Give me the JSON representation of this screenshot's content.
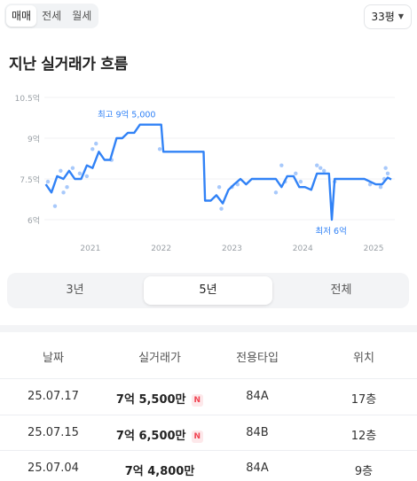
{
  "deal_tabs": [
    {
      "label": "매매",
      "active": true
    },
    {
      "label": "전세",
      "active": false
    },
    {
      "label": "월세",
      "active": false
    }
  ],
  "size_select": {
    "value": "33평",
    "icon": "caret-down-icon"
  },
  "title": "지난 실거래가 흐름",
  "chart_data": {
    "type": "line",
    "title": "",
    "ylabel": "",
    "xlabel": "",
    "y_ticks": [
      "10.5억",
      "9억",
      "7.5억",
      "6억"
    ],
    "x_ticks": [
      "2021",
      "2022",
      "2023",
      "2024",
      "2025"
    ],
    "ylim": [
      6,
      10.5
    ],
    "y_unit": "억",
    "annotations": [
      {
        "label": "최고 9억 5,000",
        "x": 2022.0,
        "y": 9.5
      },
      {
        "label": "최저 6억",
        "x": 2024.7,
        "y": 6.0
      }
    ],
    "series": [
      {
        "style": "line",
        "color": "#3182f6",
        "points": [
          [
            2020.67,
            7.3
          ],
          [
            2020.75,
            7.0
          ],
          [
            2020.83,
            7.6
          ],
          [
            2020.92,
            7.5
          ],
          [
            2021.0,
            7.8
          ],
          [
            2021.08,
            7.5
          ],
          [
            2021.17,
            7.5
          ],
          [
            2021.25,
            8.0
          ],
          [
            2021.33,
            7.9
          ],
          [
            2021.42,
            8.5
          ],
          [
            2021.5,
            8.2
          ],
          [
            2021.58,
            8.2
          ],
          [
            2021.67,
            9.0
          ],
          [
            2021.75,
            9.0
          ],
          [
            2021.83,
            9.2
          ],
          [
            2021.92,
            9.2
          ],
          [
            2022.0,
            9.5
          ],
          [
            2022.1,
            9.5
          ],
          [
            2022.2,
            9.5
          ],
          [
            2022.3,
            9.5
          ],
          [
            2022.33,
            8.5
          ],
          [
            2022.5,
            8.5
          ],
          [
            2022.67,
            8.5
          ],
          [
            2022.9,
            8.5
          ],
          [
            2022.92,
            6.7
          ],
          [
            2023.0,
            6.7
          ],
          [
            2023.08,
            6.9
          ],
          [
            2023.17,
            6.6
          ],
          [
            2023.25,
            7.1
          ],
          [
            2023.33,
            7.3
          ],
          [
            2023.42,
            7.5
          ],
          [
            2023.5,
            7.3
          ],
          [
            2023.58,
            7.5
          ],
          [
            2023.67,
            7.5
          ],
          [
            2023.75,
            7.5
          ],
          [
            2023.92,
            7.5
          ],
          [
            2024.0,
            7.2
          ],
          [
            2024.08,
            7.6
          ],
          [
            2024.17,
            7.6
          ],
          [
            2024.25,
            7.2
          ],
          [
            2024.33,
            7.2
          ],
          [
            2024.42,
            7.1
          ],
          [
            2024.5,
            7.7
          ],
          [
            2024.58,
            7.7
          ],
          [
            2024.67,
            7.7
          ],
          [
            2024.71,
            6.0
          ],
          [
            2024.75,
            7.5
          ],
          [
            2024.83,
            7.5
          ],
          [
            2025.0,
            7.5
          ],
          [
            2025.17,
            7.5
          ],
          [
            2025.33,
            7.3
          ],
          [
            2025.42,
            7.3
          ],
          [
            2025.5,
            7.55
          ],
          [
            2025.55,
            7.48
          ]
        ]
      },
      {
        "style": "scatter",
        "color": "#a8c9fb",
        "points": [
          [
            2020.7,
            7.4
          ],
          [
            2020.8,
            6.5
          ],
          [
            2020.88,
            7.8
          ],
          [
            2020.92,
            7.0
          ],
          [
            2020.97,
            7.2
          ],
          [
            2021.05,
            7.9
          ],
          [
            2021.15,
            7.7
          ],
          [
            2021.25,
            7.6
          ],
          [
            2021.33,
            8.6
          ],
          [
            2021.38,
            8.8
          ],
          [
            2021.6,
            8.2
          ],
          [
            2022.28,
            8.6
          ],
          [
            2023.12,
            7.2
          ],
          [
            2023.15,
            6.4
          ],
          [
            2023.3,
            7.2
          ],
          [
            2023.38,
            7.3
          ],
          [
            2023.92,
            7.0
          ],
          [
            2024.0,
            8.0
          ],
          [
            2024.05,
            7.4
          ],
          [
            2024.2,
            7.7
          ],
          [
            2024.27,
            7.4
          ],
          [
            2024.5,
            8.0
          ],
          [
            2024.55,
            7.9
          ],
          [
            2024.6,
            7.8
          ],
          [
            2024.75,
            7.4
          ],
          [
            2025.25,
            7.3
          ],
          [
            2025.4,
            7.2
          ],
          [
            2025.45,
            7.5
          ],
          [
            2025.47,
            7.9
          ],
          [
            2025.5,
            7.7
          ]
        ]
      }
    ]
  },
  "period_tabs": [
    {
      "label": "3년",
      "active": false
    },
    {
      "label": "5년",
      "active": true
    },
    {
      "label": "전체",
      "active": false
    }
  ],
  "table": {
    "headers": [
      "날짜",
      "실거래가",
      "전용타입",
      "위치"
    ],
    "rows": [
      {
        "date": "25.07.17",
        "price": "7억 5,500만",
        "badge": "N",
        "type": "84A",
        "floor": "17층"
      },
      {
        "date": "25.07.15",
        "price": "7억 6,500만",
        "badge": "N",
        "type": "84B",
        "floor": "12층"
      },
      {
        "date": "25.07.04",
        "price": "7억 4,800만",
        "badge": "",
        "type": "84A",
        "floor": "9층"
      }
    ]
  }
}
